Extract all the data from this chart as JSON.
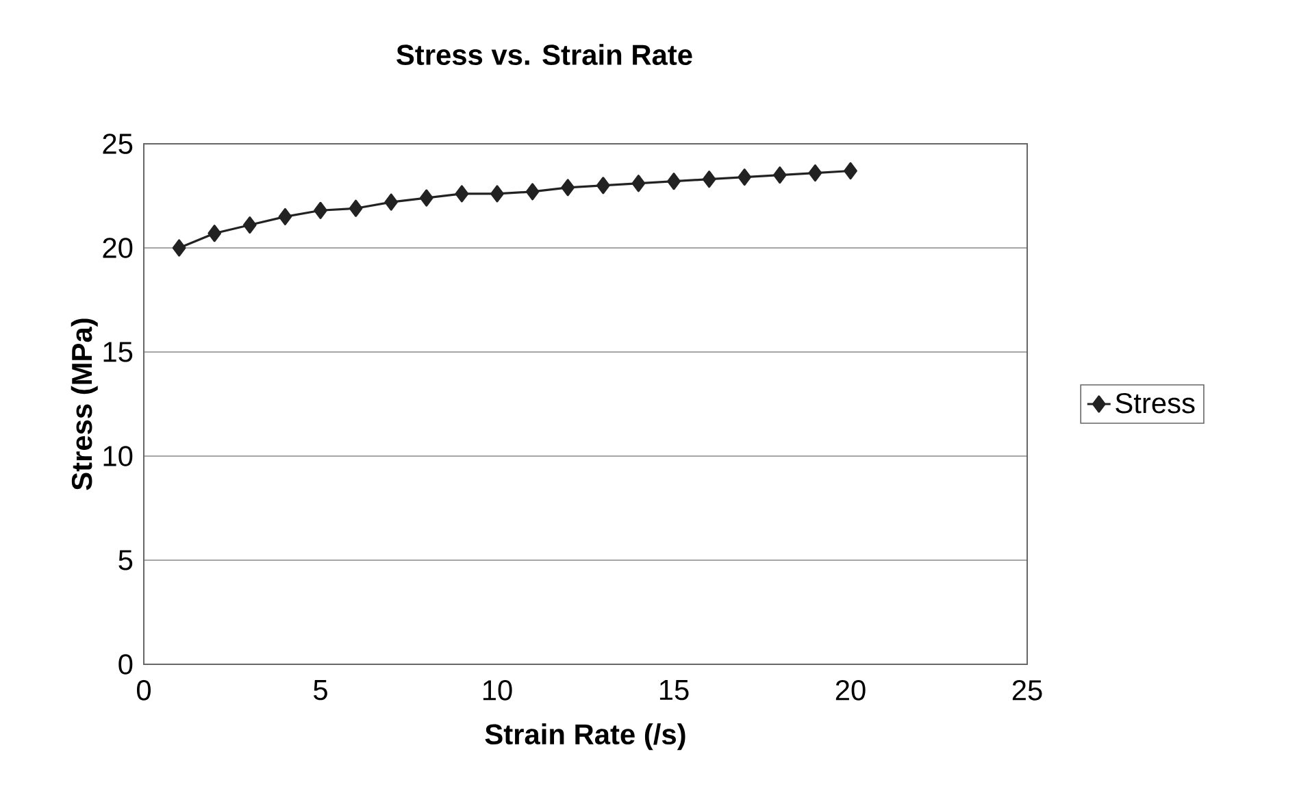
{
  "chart_data": {
    "type": "line",
    "title": "Stress vs. Strain Rate",
    "xlabel": "Strain Rate (/s)",
    "ylabel": "Stress (MPa)",
    "x": [
      1,
      2,
      3,
      4,
      5,
      6,
      7,
      8,
      9,
      10,
      11,
      12,
      13,
      14,
      15,
      16,
      17,
      18,
      19,
      20
    ],
    "series": [
      {
        "name": "Stress",
        "color": "#222222",
        "values": [
          20.0,
          20.7,
          21.1,
          21.5,
          21.8,
          21.9,
          22.2,
          22.4,
          22.6,
          22.6,
          22.7,
          22.9,
          23.0,
          23.1,
          23.2,
          23.3,
          23.4,
          23.5,
          23.6,
          23.7
        ]
      }
    ],
    "xlim": [
      0,
      25
    ],
    "xticks": [
      0,
      5,
      10,
      15,
      20,
      25
    ],
    "ylim": [
      0,
      25
    ],
    "yticks": [
      0,
      5,
      10,
      15,
      20,
      25
    ],
    "grid": "y",
    "legend": "right",
    "marker": "diamond",
    "line_style": "solid"
  }
}
